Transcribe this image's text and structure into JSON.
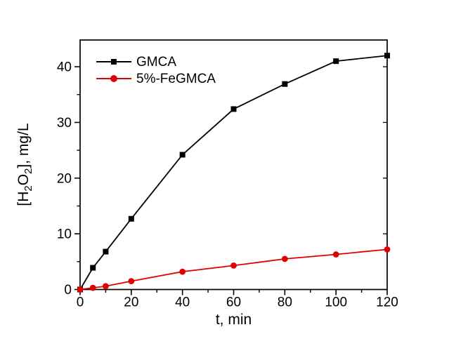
{
  "chart_data": {
    "type": "line",
    "title": "",
    "xlabel": "t, min",
    "ylabel": "[H2O2], mg/L",
    "ylabel_rich": [
      {
        "t": "[H",
        "sub": false
      },
      {
        "t": "2",
        "sub": true
      },
      {
        "t": "O",
        "sub": false
      },
      {
        "t": "2",
        "sub": true
      },
      {
        "t": "], mg/L",
        "sub": false
      }
    ],
    "x": [
      0,
      5,
      10,
      20,
      40,
      60,
      80,
      100,
      120
    ],
    "series": [
      {
        "name": "GMCA",
        "color": "#000000",
        "marker": "square",
        "values": [
          0,
          3.9,
          6.8,
          12.7,
          24.2,
          32.4,
          36.9,
          41.0,
          42.0
        ]
      },
      {
        "name": "5%-FeGMCA",
        "color": "#e10000",
        "marker": "circle",
        "values": [
          0,
          0.3,
          0.6,
          1.5,
          3.2,
          4.3,
          5.5,
          6.3,
          7.2
        ]
      }
    ],
    "xlim": [
      0,
      120
    ],
    "ylim": [
      0,
      44.8
    ],
    "x_major_ticks": [
      0,
      20,
      40,
      60,
      80,
      100,
      120
    ],
    "x_minor_ticks": [
      10,
      30,
      50,
      70,
      90,
      110
    ],
    "y_major_ticks": [
      0,
      10,
      20,
      30,
      40
    ],
    "y_minor_ticks": [
      5,
      15,
      25,
      35
    ],
    "grid": false,
    "frame": true,
    "legend_position": "top-left-inside"
  },
  "colors": {
    "background": "#ffffff",
    "axis": "#000000",
    "text": "#000000"
  }
}
